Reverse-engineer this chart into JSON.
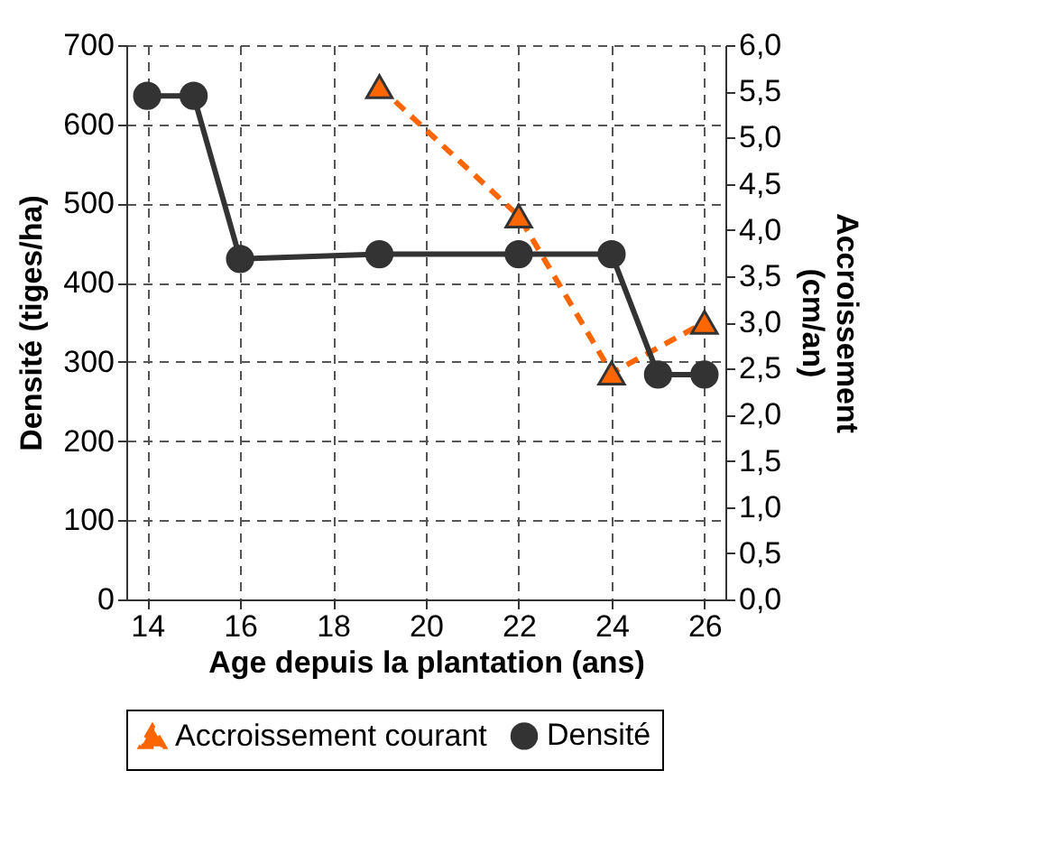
{
  "chart_data": {
    "type": "line",
    "xlabel": "Age depuis la plantation (ans)",
    "ylabel": "Densité (tiges/ha)",
    "y2label": "Accroissement (cm/an)",
    "x": [
      14,
      15,
      16,
      19,
      22,
      24,
      25,
      26
    ],
    "series": [
      {
        "name": "Accroissement courant",
        "color": "#ff6600",
        "axis": "y2",
        "marker": "triangle",
        "line_style": "dashed",
        "values": [
          null,
          null,
          null,
          5.55,
          4.15,
          2.45,
          null,
          3.0
        ]
      },
      {
        "name": "Densité",
        "color": "#333333",
        "marker": "circle",
        "line_style": "solid",
        "values": [
          636,
          636,
          430,
          436,
          436,
          436,
          284,
          284
        ]
      }
    ],
    "xlim": [
      13.55,
      26.45
    ],
    "xticks": [
      14,
      16,
      18,
      20,
      22,
      24,
      26
    ],
    "ylim": [
      0,
      700
    ],
    "yticks": [
      0,
      100,
      200,
      300,
      400,
      500,
      600,
      700
    ],
    "y2lim": [
      0,
      6
    ],
    "y2ticks": [
      {
        "value": 0,
        "label": "0,0"
      },
      {
        "value": 0.5,
        "label": "0,5"
      },
      {
        "value": 1,
        "label": "1,0"
      },
      {
        "value": 1.5,
        "label": "1,5"
      },
      {
        "value": 2,
        "label": "2,0"
      },
      {
        "value": 2.5,
        "label": "2,5"
      },
      {
        "value": 3,
        "label": "3,0"
      },
      {
        "value": 3.5,
        "label": "3,5"
      },
      {
        "value": 4,
        "label": "4,0"
      },
      {
        "value": 4.5,
        "label": "4,5"
      },
      {
        "value": 5,
        "label": "5,0"
      },
      {
        "value": 5.5,
        "label": "5,5"
      },
      {
        "value": 6,
        "label": "6,0"
      }
    ],
    "grid": true,
    "legend": "bottom"
  }
}
